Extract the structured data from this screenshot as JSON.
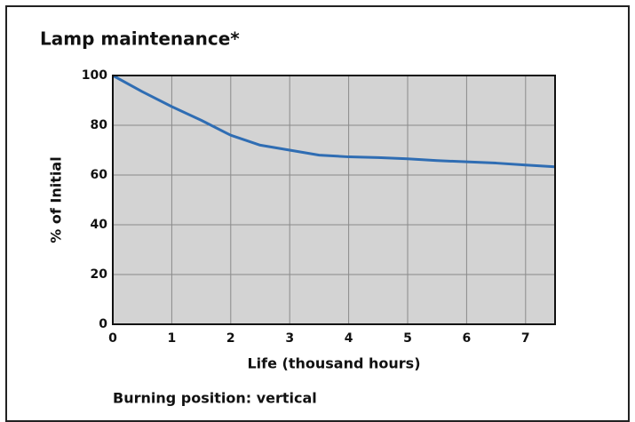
{
  "chart_data": {
    "type": "line",
    "title": "Lamp maintenance*",
    "x_label": "Life (thousand hours)",
    "y_label": "% of Initial",
    "note": "Burning position: vertical",
    "x": [
      0,
      0.5,
      1,
      1.5,
      2,
      2.5,
      3,
      3.5,
      4,
      4.5,
      5,
      5.5,
      6,
      6.5,
      7,
      7.5
    ],
    "series": [
      {
        "name": "Lamp maintenance",
        "color": "#2f6db3",
        "values": [
          100,
          93.5,
          87.5,
          82,
          76,
          72,
          70,
          68,
          67.3,
          67,
          66.5,
          65.8,
          65.3,
          64.8,
          64,
          63.3
        ]
      }
    ],
    "xlim": [
      0,
      7.5
    ],
    "xticks": [
      0,
      1,
      2,
      3,
      4,
      5,
      6,
      7
    ],
    "ylim": [
      0,
      100
    ],
    "yticks": [
      0,
      20,
      40,
      60,
      80,
      100
    ],
    "grid": true
  }
}
